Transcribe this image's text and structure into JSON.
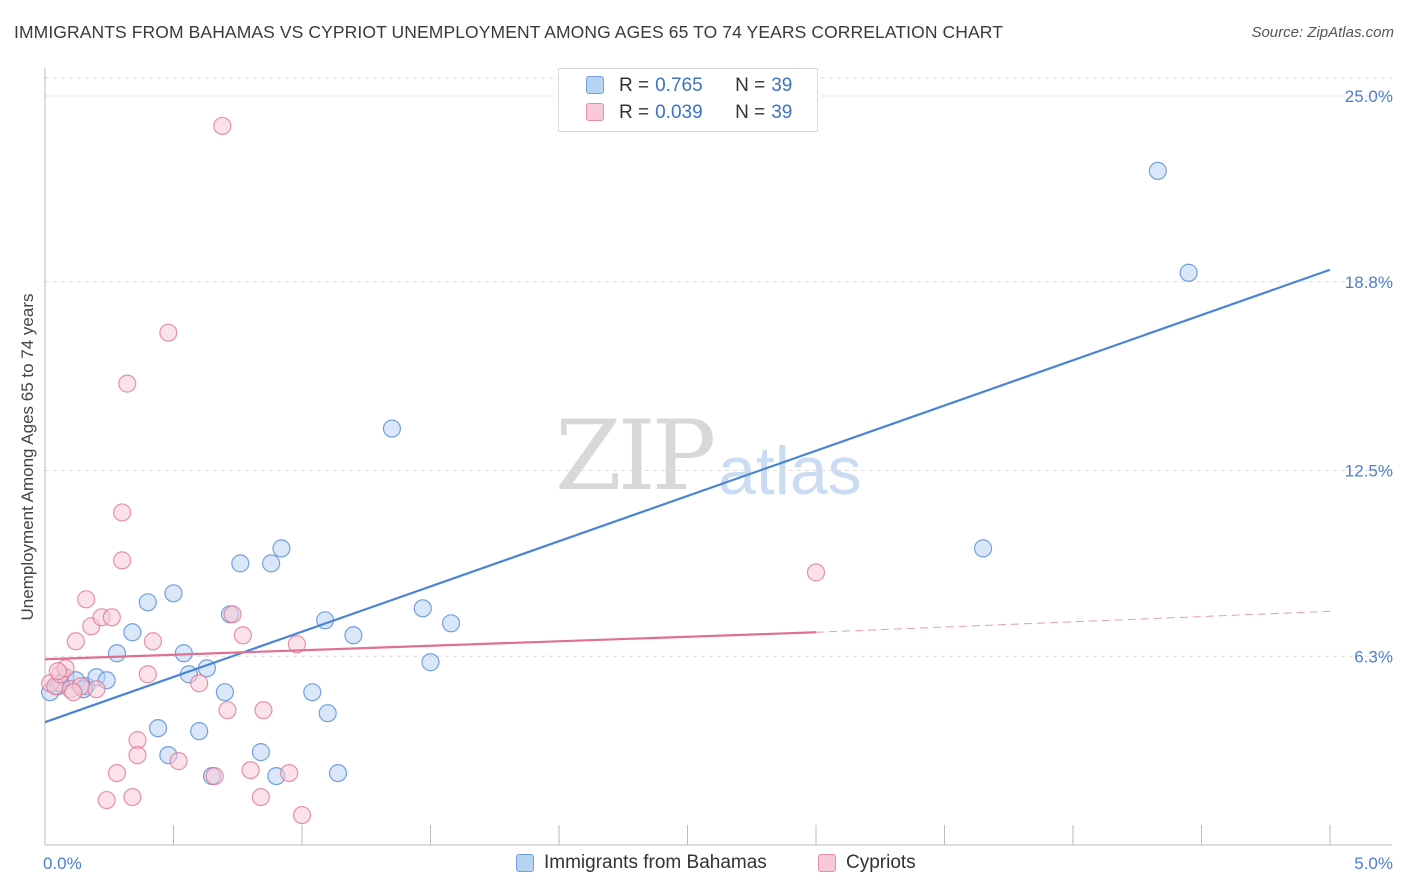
{
  "title": "IMMIGRANTS FROM BAHAMAS VS CYPRIOT UNEMPLOYMENT AMONG AGES 65 TO 74 YEARS CORRELATION CHART",
  "source": "Source: ZipAtlas.com",
  "watermark": {
    "zip": "ZIP",
    "atlas": "atlas"
  },
  "legend": {
    "rows": [
      {
        "r_label": "R =",
        "r_value": "0.765",
        "n_label": "N =",
        "n_value": "39",
        "color": "#6fa0e0",
        "fill": "#b9d3f3"
      },
      {
        "r_label": "R =",
        "r_value": "0.039",
        "n_label": "N =",
        "n_value": "39",
        "color": "#e98aa8",
        "fill": "#f8c9d6"
      }
    ],
    "bottom": [
      {
        "label": "Immigrants from Bahamas",
        "fill": "#b9d3f3",
        "color": "#6fa0e0"
      },
      {
        "label": "Cypriots",
        "fill": "#f8c9d6",
        "color": "#e98aa8"
      }
    ]
  },
  "chart_data": {
    "type": "scatter",
    "title": "IMMIGRANTS FROM BAHAMAS VS CYPRIOT UNEMPLOYMENT AMONG AGES 65 TO 74 YEARS CORRELATION CHART",
    "xlabel": "",
    "ylabel": "Unemployment Among Ages 65 to 74 years",
    "xlim": [
      0,
      5.0
    ],
    "ylim": [
      0,
      25.0
    ],
    "x_tick_labels": [
      "0.0%",
      "5.0%"
    ],
    "y_ticks": [
      6.3,
      12.5,
      18.8,
      25.0
    ],
    "y_tick_labels": [
      "6.3%",
      "12.5%",
      "18.8%",
      "25.0%"
    ],
    "grid": true,
    "series": [
      {
        "name": "Immigrants from Bahamas",
        "color": "#4a84d4",
        "fill": "#b9d3f3",
        "points": [
          [
            0.02,
            5.1
          ],
          [
            0.05,
            5.3
          ],
          [
            0.08,
            5.6
          ],
          [
            0.12,
            5.5
          ],
          [
            0.16,
            5.3
          ],
          [
            0.2,
            5.6
          ],
          [
            0.24,
            5.5
          ],
          [
            0.28,
            6.4
          ],
          [
            0.34,
            7.1
          ],
          [
            0.4,
            8.1
          ],
          [
            0.44,
            3.9
          ],
          [
            0.48,
            3.0
          ],
          [
            0.5,
            8.4
          ],
          [
            0.54,
            6.4
          ],
          [
            0.56,
            5.7
          ],
          [
            0.6,
            3.8
          ],
          [
            0.63,
            5.9
          ],
          [
            0.65,
            2.3
          ],
          [
            0.7,
            5.1
          ],
          [
            0.72,
            7.7
          ],
          [
            0.76,
            9.4
          ],
          [
            0.84,
            3.1
          ],
          [
            0.88,
            9.4
          ],
          [
            0.9,
            2.3
          ],
          [
            0.92,
            9.9
          ],
          [
            1.04,
            5.1
          ],
          [
            1.09,
            7.5
          ],
          [
            1.1,
            4.4
          ],
          [
            1.14,
            2.4
          ],
          [
            1.2,
            7.0
          ],
          [
            1.35,
            13.9
          ],
          [
            1.47,
            7.9
          ],
          [
            1.5,
            6.1
          ],
          [
            1.58,
            7.4
          ],
          [
            3.65,
            9.9
          ],
          [
            4.33,
            22.5
          ],
          [
            4.45,
            19.1
          ],
          [
            0.06,
            5.4
          ],
          [
            0.15,
            5.2
          ]
        ]
      },
      {
        "name": "Cypriots",
        "color": "#e0708f",
        "fill": "#f8c9d6",
        "points": [
          [
            0.02,
            5.4
          ],
          [
            0.04,
            5.3
          ],
          [
            0.06,
            5.7
          ],
          [
            0.08,
            5.9
          ],
          [
            0.1,
            5.2
          ],
          [
            0.12,
            6.8
          ],
          [
            0.14,
            5.3
          ],
          [
            0.16,
            8.2
          ],
          [
            0.18,
            7.3
          ],
          [
            0.2,
            5.2
          ],
          [
            0.22,
            7.6
          ],
          [
            0.24,
            1.5
          ],
          [
            0.26,
            7.6
          ],
          [
            0.28,
            2.4
          ],
          [
            0.3,
            11.1
          ],
          [
            0.3,
            9.5
          ],
          [
            0.32,
            15.4
          ],
          [
            0.34,
            1.6
          ],
          [
            0.36,
            3.5
          ],
          [
            0.36,
            3.0
          ],
          [
            0.4,
            5.7
          ],
          [
            0.42,
            6.8
          ],
          [
            0.48,
            17.1
          ],
          [
            0.52,
            2.8
          ],
          [
            0.6,
            5.4
          ],
          [
            0.66,
            2.3
          ],
          [
            0.69,
            24.0
          ],
          [
            0.71,
            4.5
          ],
          [
            0.73,
            7.7
          ],
          [
            0.77,
            7.0
          ],
          [
            0.8,
            2.5
          ],
          [
            0.84,
            1.6
          ],
          [
            0.85,
            4.5
          ],
          [
            0.95,
            2.4
          ],
          [
            0.98,
            6.7
          ],
          [
            1.0,
            1.0
          ],
          [
            3.0,
            9.1
          ],
          [
            0.05,
            5.8
          ],
          [
            0.11,
            5.1
          ]
        ]
      }
    ],
    "trendlines": [
      {
        "series": "Immigrants from Bahamas",
        "from": [
          0.0,
          4.1
        ],
        "to": [
          5.0,
          19.2
        ],
        "style": "solid"
      },
      {
        "series": "Cypriots",
        "from": [
          0.0,
          6.2
        ],
        "to": [
          3.0,
          7.1
        ],
        "style": "solid"
      },
      {
        "series": "Cypriots",
        "from": [
          3.0,
          7.1
        ],
        "to": [
          5.0,
          7.8
        ],
        "style": "dashed"
      }
    ]
  }
}
